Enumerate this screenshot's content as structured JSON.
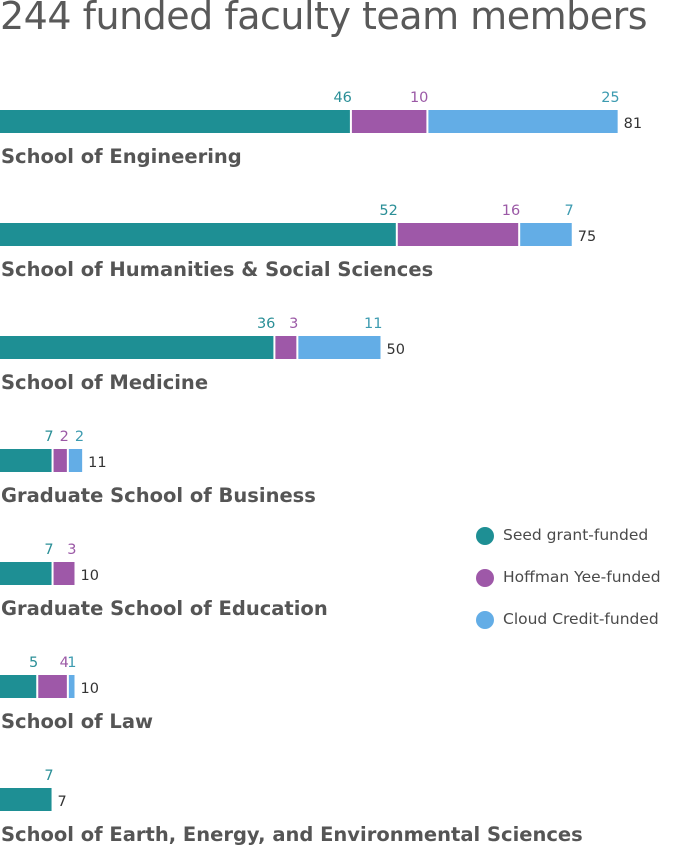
{
  "chart_data": {
    "type": "bar",
    "stacked": true,
    "orientation": "horizontal",
    "title": "244 funded faculty team members",
    "categories": [
      "School of Engineering",
      "School of Humanities & Social Sciences",
      "School of Medicine",
      "Graduate School of Business",
      "Graduate School of Education",
      "School of Law",
      "School of Earth, Energy, and Environmental Sciences"
    ],
    "series": [
      {
        "name": "Seed grant-funded",
        "color": "#1e8f94",
        "values": [
          46,
          52,
          36,
          7,
          7,
          5,
          7
        ]
      },
      {
        "name": "Hoffman Yee-funded",
        "color": "#9e58a8",
        "values": [
          10,
          16,
          3,
          2,
          3,
          4,
          0
        ]
      },
      {
        "name": "Cloud Credit-funded",
        "color": "#63ade6",
        "values": [
          25,
          7,
          11,
          2,
          0,
          1,
          0
        ]
      }
    ],
    "totals": [
      81,
      75,
      50,
      11,
      10,
      10,
      7
    ],
    "label_colors": [
      "#2b8f97",
      "#9b59a6",
      "#3d9bb0"
    ],
    "total_label_color": "#333333",
    "category_label_color": "#555555",
    "legend_position": "right-middle",
    "grid": false
  }
}
